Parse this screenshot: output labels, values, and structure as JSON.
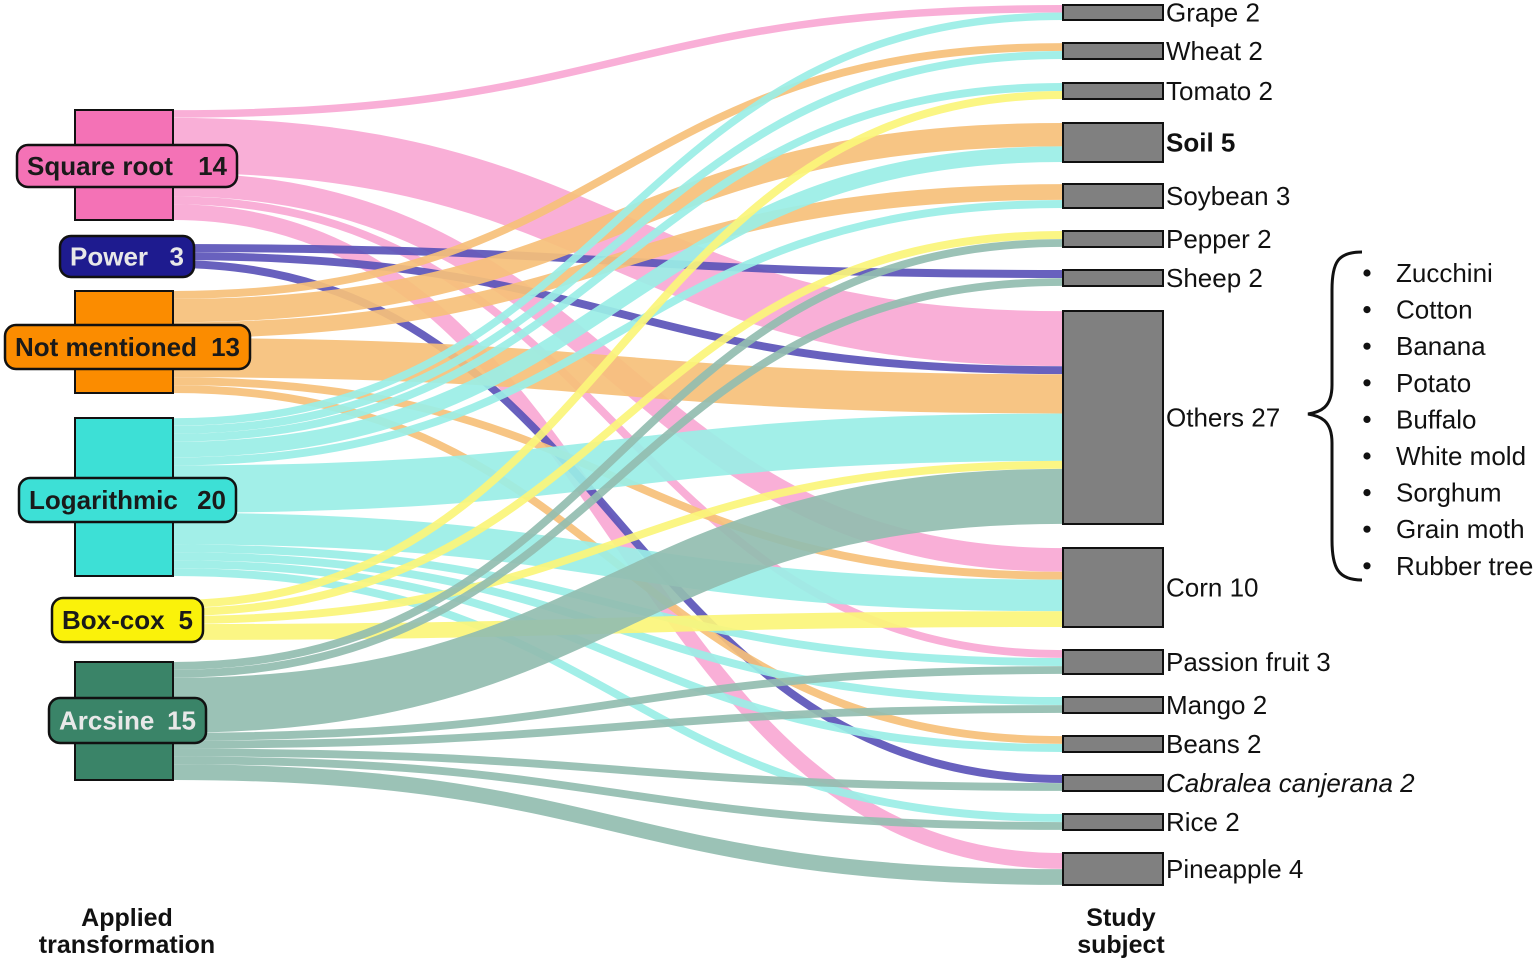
{
  "chart_data": {
    "type": "sankey",
    "axis_titles": {
      "left": [
        "Applied",
        "transformation"
      ],
      "right": [
        "Study",
        "subject"
      ]
    },
    "sources": [
      {
        "id": "sqrt",
        "name": "Square root",
        "value": "14",
        "color": "#f472b6",
        "link_color": "#f9a8d4"
      },
      {
        "id": "power",
        "name": "Power",
        "value": "3",
        "color": "#1e1b8f",
        "link_color": "#5b54b8"
      },
      {
        "id": "notm",
        "name": "Not mentioned",
        "value": "13",
        "color": "#fb8c00",
        "link_color": "#f6c07a"
      },
      {
        "id": "log",
        "name": "Logarithmic",
        "value": "20",
        "color": "#3de0d6",
        "link_color": "#9aeee6"
      },
      {
        "id": "box",
        "name": "Box-cox",
        "value": "5",
        "color": "#faf20a",
        "link_color": "#fbf57a"
      },
      {
        "id": "arc",
        "name": "Arcsine",
        "value": "15",
        "color": "#3a8468",
        "link_color": "#93bdb0"
      }
    ],
    "targets": [
      {
        "id": "grape",
        "name": "Grape",
        "value": "2",
        "style": "normal"
      },
      {
        "id": "wheat",
        "name": "Wheat",
        "value": "2",
        "style": "normal"
      },
      {
        "id": "tomato",
        "name": "Tomato",
        "value": "2",
        "style": "normal"
      },
      {
        "id": "soil",
        "name": "Soil",
        "value": "5",
        "style": "bold"
      },
      {
        "id": "soybean",
        "name": "Soybean",
        "value": "3",
        "style": "normal"
      },
      {
        "id": "pepper",
        "name": "Pepper",
        "value": "2",
        "style": "normal"
      },
      {
        "id": "sheep",
        "name": "Sheep",
        "value": "2",
        "style": "normal"
      },
      {
        "id": "others",
        "name": "Others",
        "value": "27",
        "style": "normal"
      },
      {
        "id": "corn",
        "name": "Corn",
        "value": "10",
        "style": "normal"
      },
      {
        "id": "passion",
        "name": "Passion fruit",
        "value": "3",
        "style": "normal"
      },
      {
        "id": "mango",
        "name": "Mango",
        "value": "2",
        "style": "normal"
      },
      {
        "id": "beans",
        "name": "Beans",
        "value": "2",
        "style": "normal"
      },
      {
        "id": "cabralea",
        "name": "Cabralea canjerana",
        "value": "2",
        "style": "italic"
      },
      {
        "id": "rice",
        "name": "Rice",
        "value": "2",
        "style": "normal"
      },
      {
        "id": "pineapple",
        "name": "Pineapple",
        "value": "4",
        "style": "normal"
      }
    ],
    "links": [
      {
        "source": "sqrt",
        "target": "grape",
        "value": 1
      },
      {
        "source": "sqrt",
        "target": "others",
        "value": 7
      },
      {
        "source": "sqrt",
        "target": "corn",
        "value": 3
      },
      {
        "source": "sqrt",
        "target": "passion",
        "value": 1
      },
      {
        "source": "sqrt",
        "target": "pineapple",
        "value": 2
      },
      {
        "source": "power",
        "target": "sheep",
        "value": 1
      },
      {
        "source": "power",
        "target": "others",
        "value": 1
      },
      {
        "source": "power",
        "target": "cabralea",
        "value": 1
      },
      {
        "source": "notm",
        "target": "wheat",
        "value": 1
      },
      {
        "source": "notm",
        "target": "soil",
        "value": 3
      },
      {
        "source": "notm",
        "target": "soybean",
        "value": 2
      },
      {
        "source": "notm",
        "target": "others",
        "value": 5
      },
      {
        "source": "notm",
        "target": "corn",
        "value": 1
      },
      {
        "source": "notm",
        "target": "beans",
        "value": 1
      },
      {
        "source": "log",
        "target": "grape",
        "value": 1
      },
      {
        "source": "log",
        "target": "wheat",
        "value": 1
      },
      {
        "source": "log",
        "target": "tomato",
        "value": 1
      },
      {
        "source": "log",
        "target": "soil",
        "value": 2
      },
      {
        "source": "log",
        "target": "soybean",
        "value": 1
      },
      {
        "source": "log",
        "target": "others",
        "value": 6
      },
      {
        "source": "log",
        "target": "corn",
        "value": 4
      },
      {
        "source": "log",
        "target": "passion",
        "value": 1
      },
      {
        "source": "log",
        "target": "mango",
        "value": 1
      },
      {
        "source": "log",
        "target": "beans",
        "value": 1
      },
      {
        "source": "log",
        "target": "rice",
        "value": 1
      },
      {
        "source": "box",
        "target": "tomato",
        "value": 1
      },
      {
        "source": "box",
        "target": "pepper",
        "value": 1
      },
      {
        "source": "box",
        "target": "others",
        "value": 1
      },
      {
        "source": "box",
        "target": "corn",
        "value": 2
      },
      {
        "source": "arc",
        "target": "pepper",
        "value": 1
      },
      {
        "source": "arc",
        "target": "sheep",
        "value": 1
      },
      {
        "source": "arc",
        "target": "others",
        "value": 7
      },
      {
        "source": "arc",
        "target": "passion",
        "value": 1
      },
      {
        "source": "arc",
        "target": "mango",
        "value": 1
      },
      {
        "source": "arc",
        "target": "cabralea",
        "value": 1
      },
      {
        "source": "arc",
        "target": "rice",
        "value": 1
      },
      {
        "source": "arc",
        "target": "pineapple",
        "value": 2
      }
    ],
    "others_breakdown": [
      "Zucchini",
      "Cotton",
      "Banana",
      "Potato",
      "Buffalo",
      "White mold",
      "Sorghum",
      "Grain moth",
      "Rubber tree"
    ]
  },
  "colors": {
    "target_node": "#808080",
    "node_stroke": "#111111"
  }
}
